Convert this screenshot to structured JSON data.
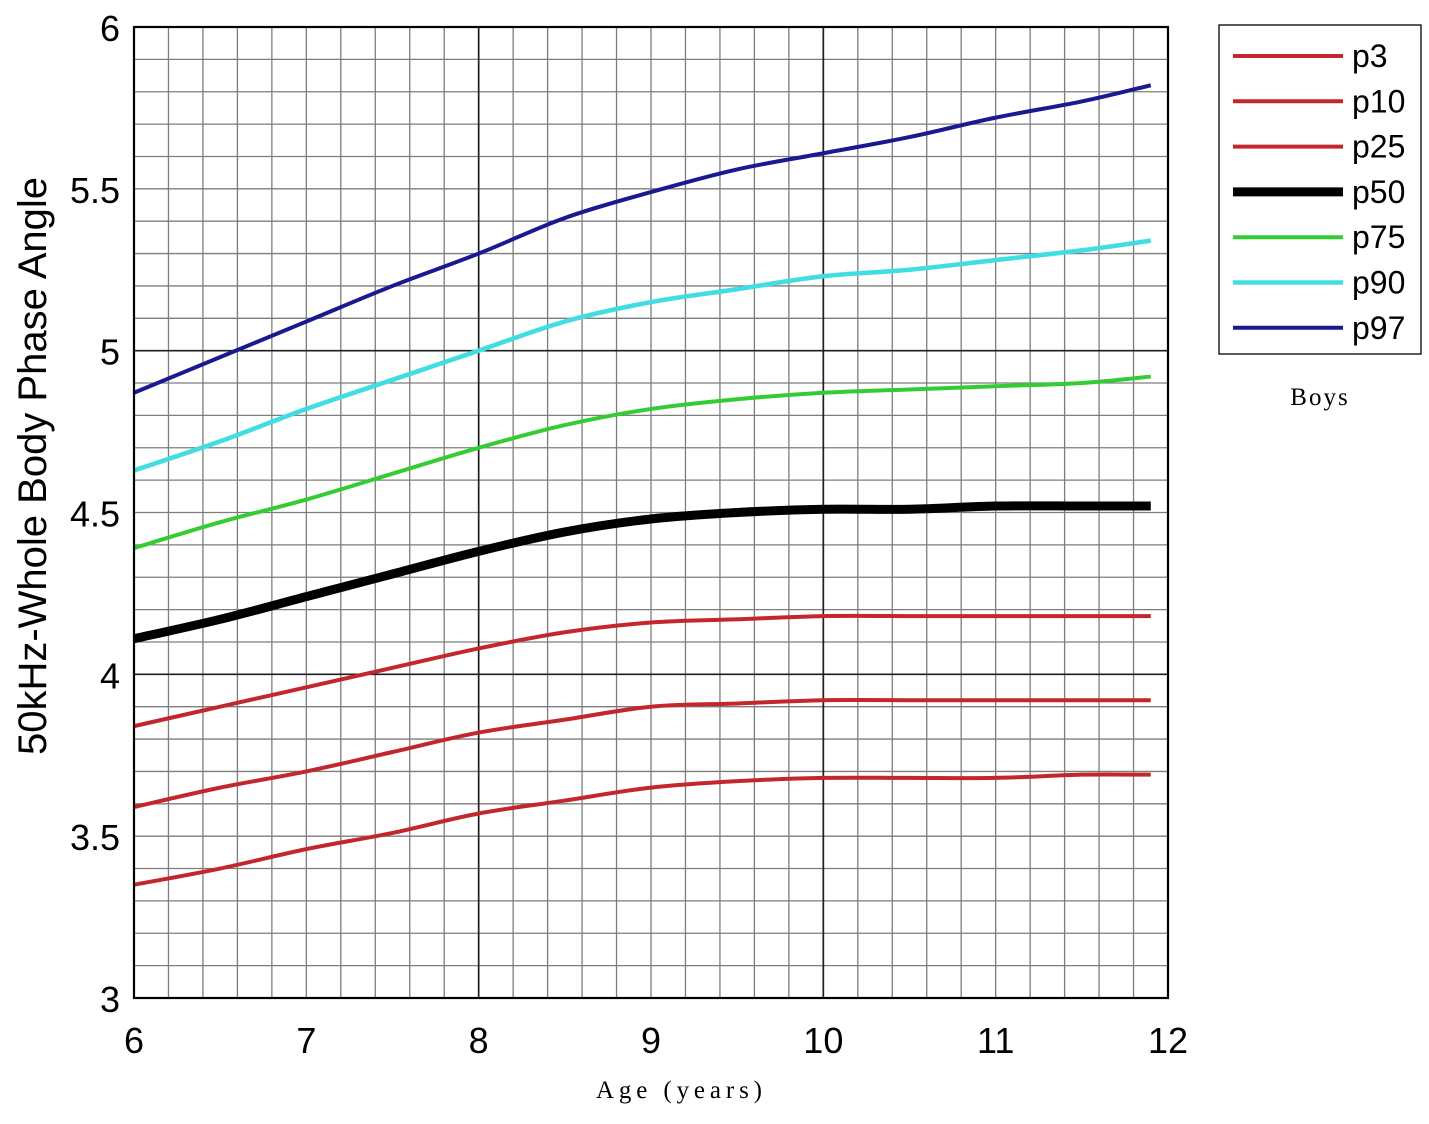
{
  "chart_data": {
    "type": "line",
    "xlabel": "Age (years)",
    "ylabel": "50kHz-Whole Body Phase Angle",
    "xlim": [
      6,
      12
    ],
    "ylim": [
      3,
      6
    ],
    "x_ticks": [
      6,
      7,
      8,
      9,
      10,
      11,
      12
    ],
    "y_ticks": [
      3,
      3.5,
      4,
      4.5,
      5,
      5.5,
      6
    ],
    "grid": true,
    "legend_position": "top-right, outside plot",
    "annotation": "Boys",
    "x": [
      6,
      6.5,
      7,
      7.5,
      8,
      8.5,
      9,
      9.5,
      10,
      10.5,
      11,
      11.5,
      11.9
    ],
    "series": [
      {
        "name": "p3",
        "color": "#c1272d",
        "values": [
          3.35,
          3.4,
          3.46,
          3.51,
          3.57,
          3.61,
          3.65,
          3.67,
          3.68,
          3.68,
          3.68,
          3.69,
          3.69
        ]
      },
      {
        "name": "p10",
        "color": "#c1272d",
        "values": [
          3.59,
          3.65,
          3.7,
          3.76,
          3.82,
          3.86,
          3.9,
          3.91,
          3.92,
          3.92,
          3.92,
          3.92,
          3.92
        ]
      },
      {
        "name": "p25",
        "color": "#c1272d",
        "values": [
          3.84,
          3.9,
          3.96,
          4.02,
          4.08,
          4.13,
          4.16,
          4.17,
          4.18,
          4.18,
          4.18,
          4.18,
          4.18
        ]
      },
      {
        "name": "p50",
        "color": "#000000",
        "values": [
          4.11,
          4.17,
          4.24,
          4.31,
          4.38,
          4.44,
          4.48,
          4.5,
          4.51,
          4.51,
          4.52,
          4.52,
          4.52
        ]
      },
      {
        "name": "p75",
        "color": "#33cc33",
        "values": [
          4.39,
          4.47,
          4.54,
          4.62,
          4.7,
          4.77,
          4.82,
          4.85,
          4.87,
          4.88,
          4.89,
          4.9,
          4.92
        ]
      },
      {
        "name": "p90",
        "color": "#42dde3",
        "values": [
          4.63,
          4.72,
          4.82,
          4.91,
          5.0,
          5.09,
          5.15,
          5.19,
          5.23,
          5.25,
          5.28,
          5.31,
          5.34
        ]
      },
      {
        "name": "p97",
        "color": "#191990",
        "values": [
          4.87,
          4.98,
          5.09,
          5.2,
          5.3,
          5.41,
          5.49,
          5.56,
          5.61,
          5.66,
          5.72,
          5.77,
          5.82
        ]
      }
    ]
  }
}
